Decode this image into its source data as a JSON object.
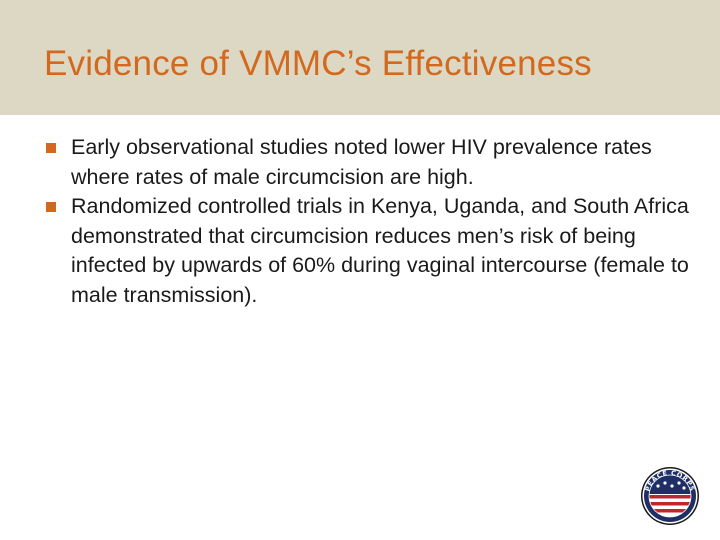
{
  "slide": {
    "title": "Evidence of VMMC’s Effectiveness",
    "bullets": [
      "Early observational studies noted lower HIV prevalence rates where rates of male circumcision are high.",
      "Randomized controlled trials in Kenya, Uganda, and South Africa demonstrated that circumcision reduces men’s risk of being infected by upwards of 60% during vaginal intercourse (female to male transmission)."
    ],
    "logo_text": "PEACE CORPS"
  },
  "colors": {
    "title_bar": "#ddd8c4",
    "title_text": "#d2691e",
    "bullet_mark": "#d2691e",
    "body_text": "#1a1a1a"
  },
  "icons": {
    "bullet": "square-bullet-icon",
    "logo": "peace-corps-seal"
  }
}
